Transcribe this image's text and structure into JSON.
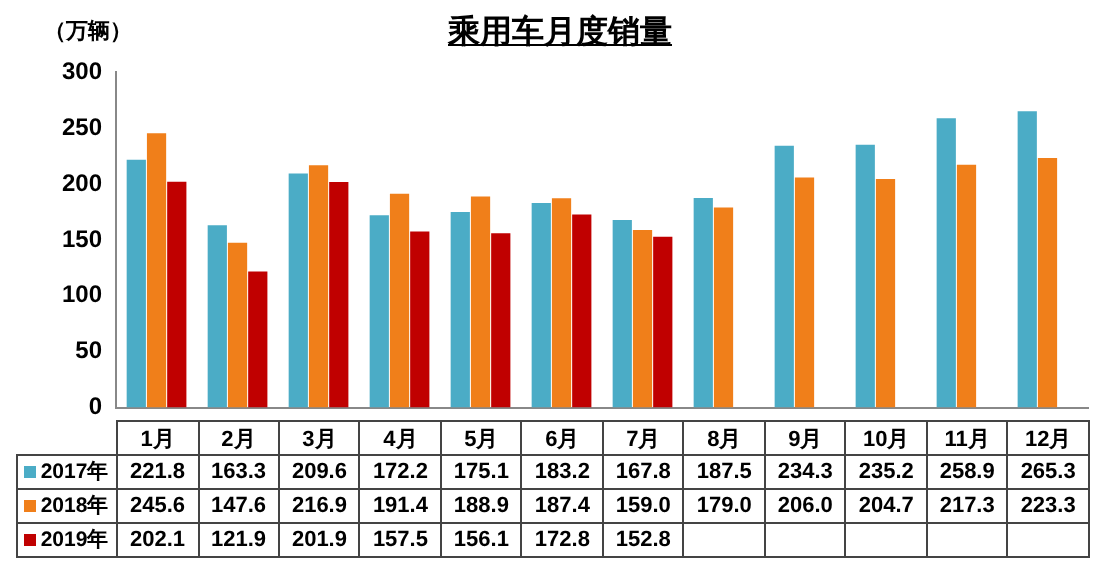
{
  "chart_data": {
    "type": "bar",
    "title": "乘用车月度销量",
    "ylabel": "（万辆）",
    "categories": [
      "1月",
      "2月",
      "3月",
      "4月",
      "5月",
      "6月",
      "7月",
      "8月",
      "9月",
      "10月",
      "11月",
      "12月"
    ],
    "series": [
      {
        "name": "2017年",
        "color": "#4bacc6",
        "values": [
          221.8,
          163.3,
          209.6,
          172.2,
          175.1,
          183.2,
          167.8,
          187.5,
          234.3,
          235.2,
          258.9,
          265.3
        ],
        "value_labels": [
          "221.8",
          "163.3",
          "209.6",
          "172.2",
          "175.1",
          "183.2",
          "167.8",
          "187.5",
          "234.3",
          "235.2",
          "258.9",
          "265.3"
        ]
      },
      {
        "name": "2018年",
        "color": "#f07f1a",
        "values": [
          245.6,
          147.6,
          216.9,
          191.4,
          188.9,
          187.4,
          159.0,
          179.0,
          206.0,
          204.7,
          217.3,
          223.3
        ],
        "value_labels": [
          "245.6",
          "147.6",
          "216.9",
          "191.4",
          "188.9",
          "187.4",
          "159.0",
          "179.0",
          "206.0",
          "204.7",
          "217.3",
          "223.3"
        ]
      },
      {
        "name": "2019年",
        "color": "#c00000",
        "values": [
          202.1,
          121.9,
          201.9,
          157.5,
          156.1,
          172.8,
          152.8,
          null,
          null,
          null,
          null,
          null
        ],
        "value_labels": [
          "202.1",
          "121.9",
          "201.9",
          "157.5",
          "156.1",
          "172.8",
          "152.8",
          null,
          null,
          null,
          null,
          null
        ]
      }
    ],
    "ylim": [
      0,
      300
    ],
    "yticks": [
      0,
      50,
      100,
      150,
      200,
      250,
      300
    ],
    "grid": false,
    "legend": "bottom"
  }
}
